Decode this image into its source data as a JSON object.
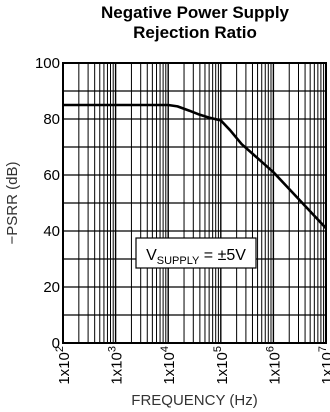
{
  "chart_data": {
    "type": "line",
    "title_line1": "Negative Power Supply",
    "title_line2": "Rejection Ratio",
    "xlabel": "FREQUENCY (Hz)",
    "ylabel": "−PSRR (dB)",
    "x_scale": "log",
    "xlim": [
      100,
      10000000
    ],
    "ylim": [
      0,
      100
    ],
    "y_ticks": [
      "0",
      "20",
      "40",
      "60",
      "80",
      "100"
    ],
    "x_ticks": [
      {
        "base": "1x10",
        "exp": "2"
      },
      {
        "base": "1x10",
        "exp": "3"
      },
      {
        "base": "1x10",
        "exp": "4"
      },
      {
        "base": "1x10",
        "exp": "5"
      },
      {
        "base": "1x10",
        "exp": "6"
      },
      {
        "base": "1x10",
        "exp": "7"
      }
    ],
    "grid": true,
    "annotation": {
      "main": "V",
      "sub": "SUPPLY",
      "rest": " = ±5V"
    },
    "series": [
      {
        "x": [
          100,
          1000,
          10000,
          15000,
          25000,
          40000,
          60000,
          100000,
          150000,
          250000,
          500000,
          1000000,
          2000000,
          5000000,
          10000000
        ],
        "y": [
          85,
          85,
          85,
          84.5,
          83,
          81.5,
          80.5,
          79.5,
          76,
          71,
          66,
          61,
          55,
          47,
          41
        ]
      }
    ]
  }
}
